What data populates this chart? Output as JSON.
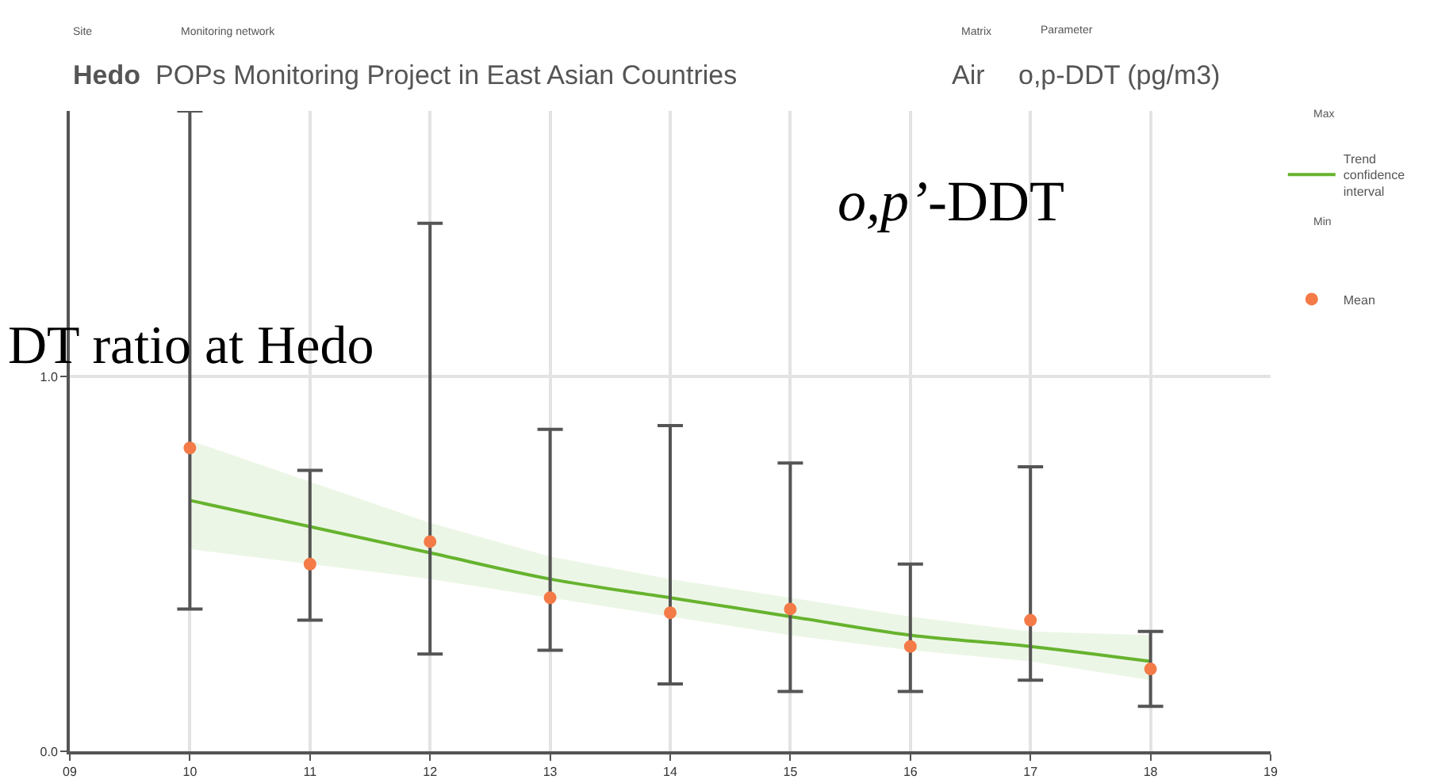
{
  "chart_data": {
    "type": "scatter",
    "annotations": [
      "Site",
      "Monitoring network",
      "Matrix",
      "Parameter",
      "Hedo",
      "POPs Monitoring Project in East Asian Countries",
      "Air",
      "o,p-DDT (pg/m3)",
      "DT ratio at Hedo",
      "o,p’-DDT",
      "Max",
      "Min"
    ],
    "x": [
      10,
      11,
      12,
      13,
      14,
      15,
      16,
      17,
      18
    ],
    "series": [
      {
        "name": "Mean",
        "marker": "circle",
        "color": "#f47b48",
        "values": [
          0.81,
          0.5,
          0.56,
          0.41,
          0.37,
          0.38,
          0.28,
          0.35,
          0.22
        ],
        "errors": [
          [
            0.38,
            1.71
          ],
          [
            0.35,
            0.75
          ],
          [
            0.26,
            1.41
          ],
          [
            0.27,
            0.86
          ],
          [
            0.18,
            0.87
          ],
          [
            0.16,
            0.77
          ],
          [
            0.16,
            0.5
          ],
          [
            0.19,
            0.76
          ],
          [
            0.12,
            0.32
          ]
        ]
      },
      {
        "name": "Trend confidence interval",
        "type": "line",
        "color": "#66b32e",
        "values": [
          0.67,
          0.6,
          0.53,
          0.46,
          0.41,
          0.36,
          0.31,
          0.28,
          0.24
        ],
        "lower": [
          0.54,
          0.5,
          0.46,
          0.41,
          0.36,
          0.31,
          0.27,
          0.24,
          0.19
        ],
        "upper": [
          0.83,
          0.72,
          0.61,
          0.52,
          0.46,
          0.41,
          0.36,
          0.32,
          0.31
        ]
      }
    ],
    "xlim": [
      9,
      19
    ],
    "xticks": [
      {
        "value": 9,
        "label": "09"
      },
      10,
      11,
      12,
      13,
      14,
      15,
      16,
      17,
      18,
      19
    ],
    "ylim": [
      0,
      1.71
    ],
    "yticks": [
      {
        "value": 0,
        "label": "0.0"
      },
      {
        "value": 1,
        "label": "1.0"
      }
    ],
    "grid": true,
    "legend": "right"
  }
}
